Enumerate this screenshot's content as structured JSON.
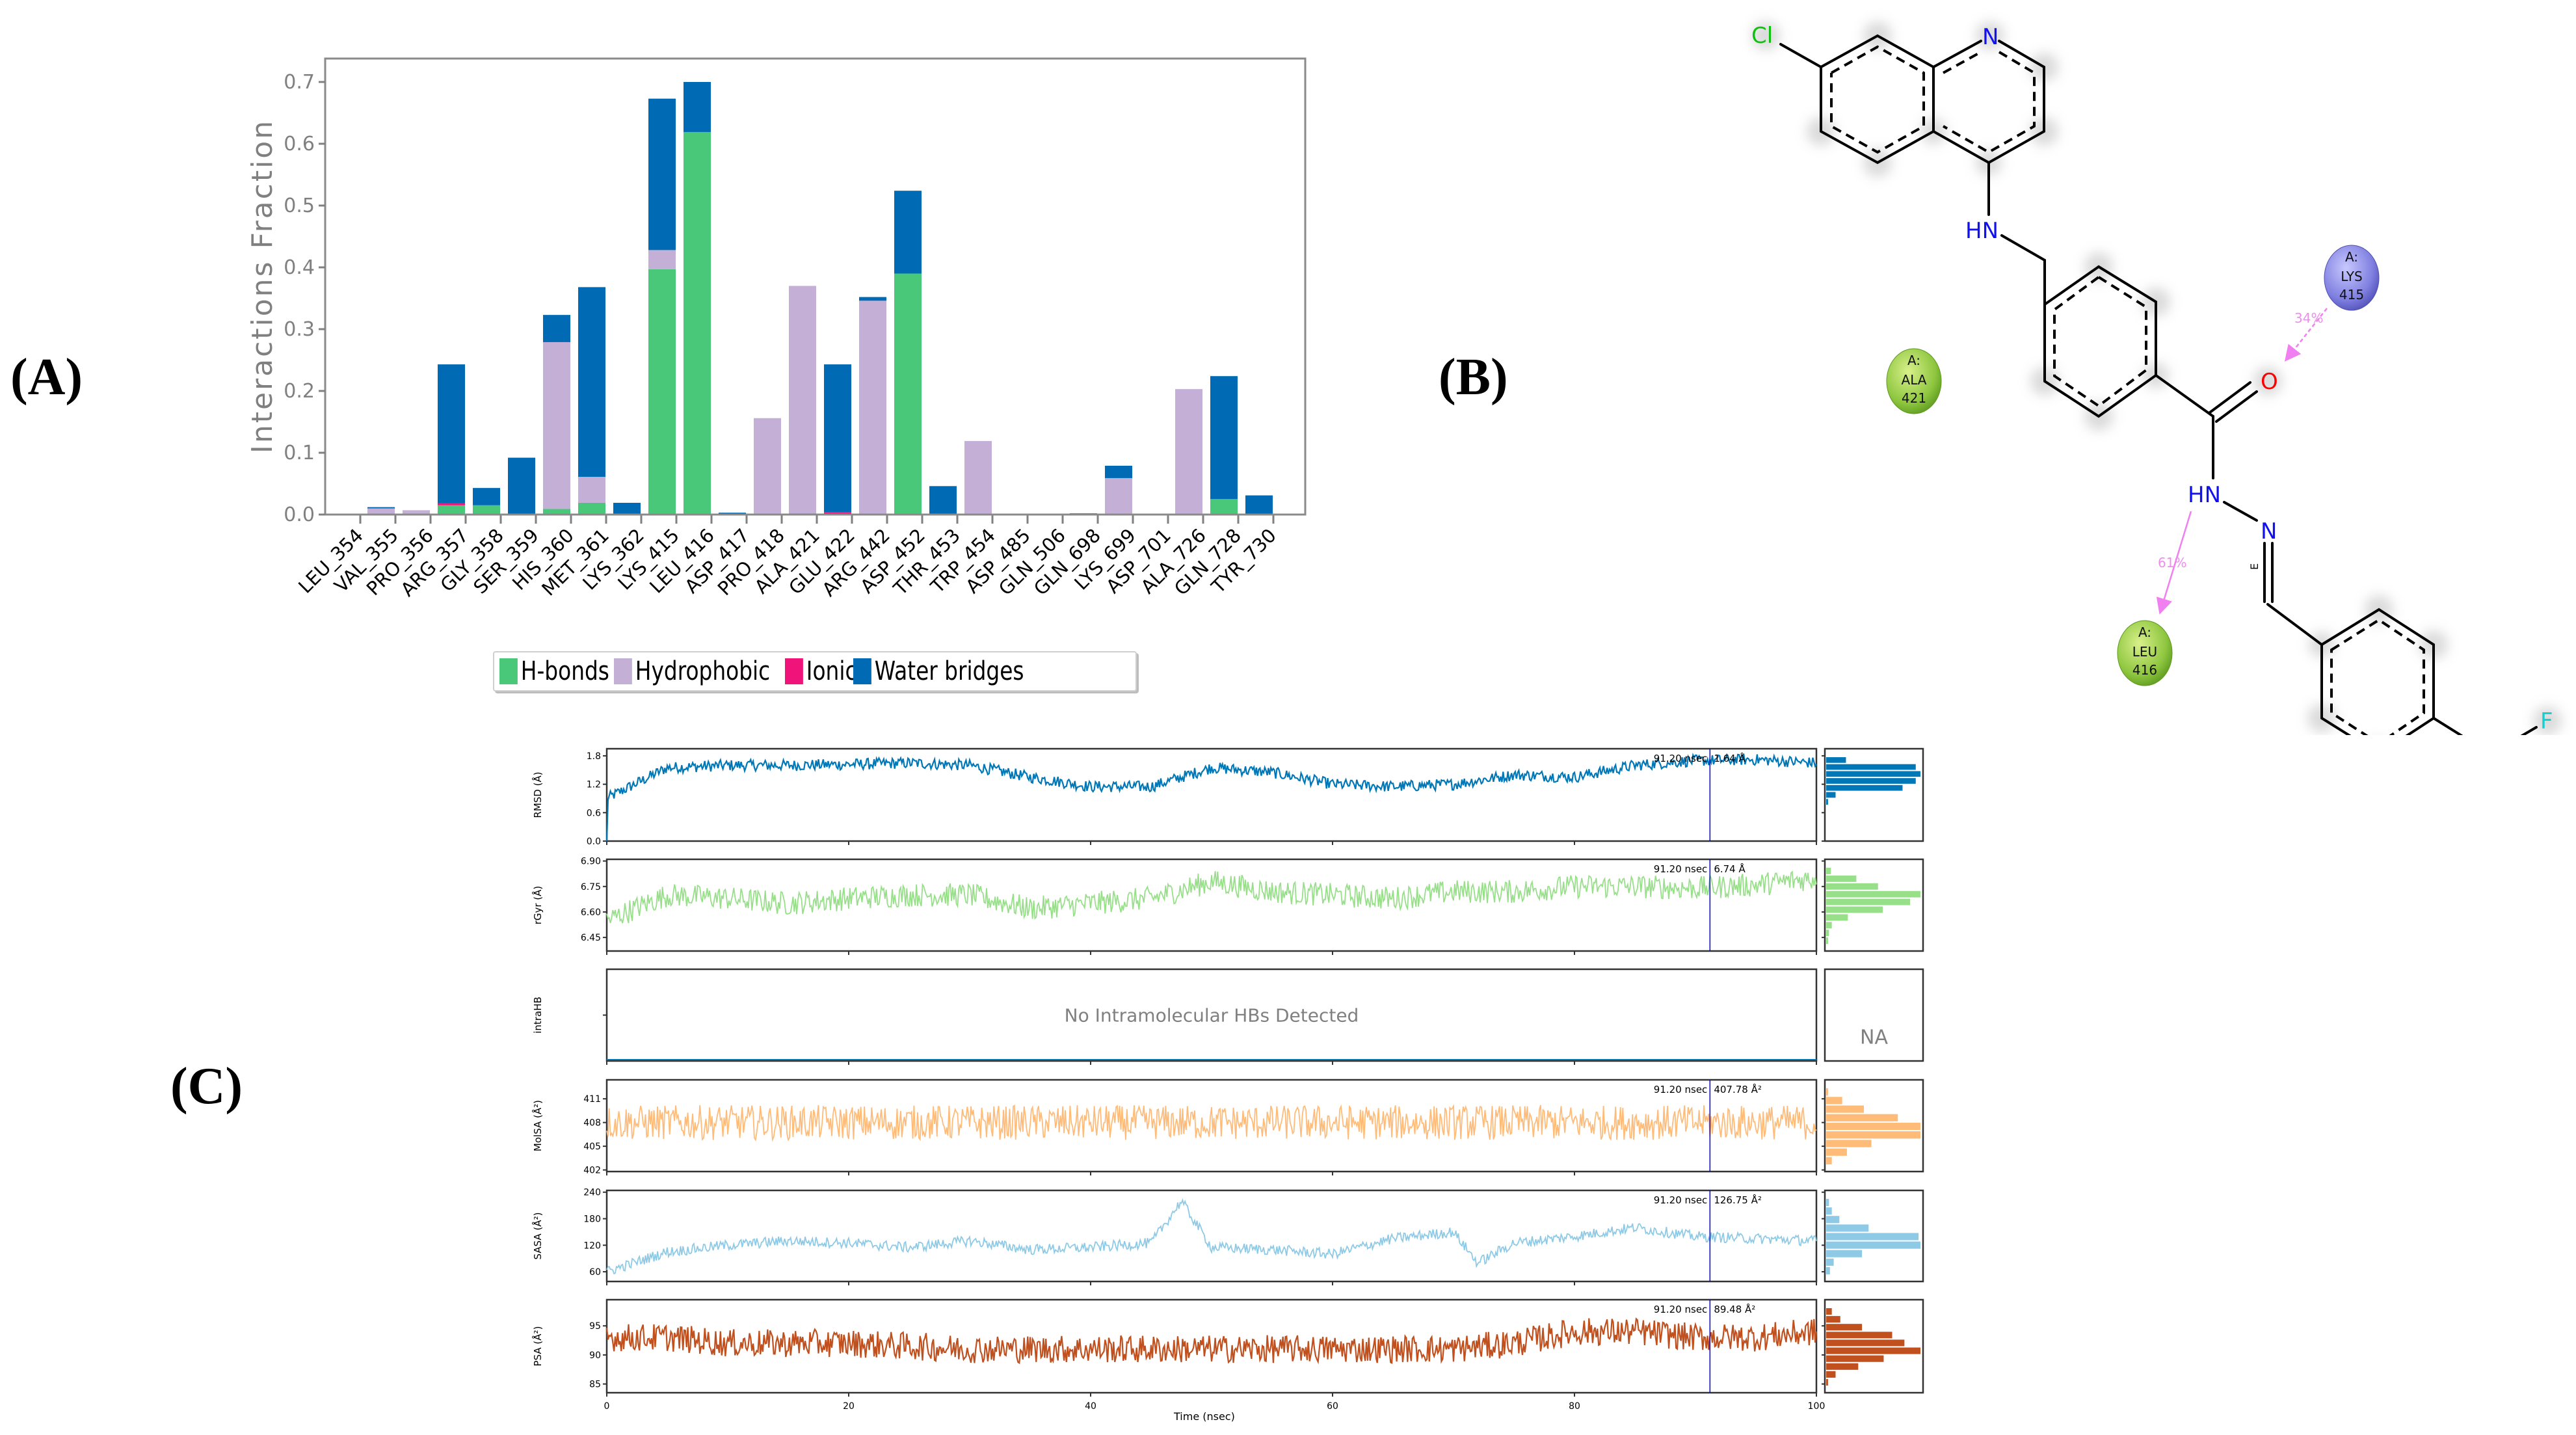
{
  "panel_labels": {
    "a": "(A)",
    "b": "(B)",
    "c": "(C)"
  },
  "colors": {
    "hbonds": "#48c878",
    "hydrophobic": "#c4afd6",
    "ionic": "#f0147a",
    "water_bridges": "#006ab4",
    "rmsd": "#0077b6",
    "rgyr": "#98df8a",
    "molsa": "#ffbb78",
    "sasa": "#8ecae6",
    "psa": "#c0501e",
    "marker_line": "#0000ff",
    "atom_n": "#1010f0",
    "atom_o": "#ff0000",
    "atom_cl": "#10c010",
    "atom_f": "#10d0d0",
    "res_hydrophobic": "#8ec63f",
    "res_positive": "#7f7fe0",
    "hbond_arrow": "#f080f0"
  },
  "chart_data": [
    {
      "id": "A",
      "type": "bar",
      "stacked": true,
      "title": "",
      "xlabel": "",
      "ylabel": "Interactions Fraction",
      "ylim": [
        0,
        0.72
      ],
      "yticks": [
        "0.0",
        "0.1",
        "0.2",
        "0.3",
        "0.4",
        "0.5",
        "0.6",
        "0.7"
      ],
      "legend_position": "bottom-center",
      "categories": [
        "LEU_354",
        "VAL_355",
        "PRO_356",
        "ARG_357",
        "GLY_358",
        "SER_359",
        "HIS_360",
        "MET_361",
        "LYS_362",
        "LYS_415",
        "LEU_416",
        "ASP_417",
        "PRO_418",
        "ALA_421",
        "GLU_422",
        "ARG_442",
        "ASP_452",
        "THR_453",
        "TRP_454",
        "ASP_485",
        "GLN_506",
        "GLN_698",
        "LYS_699",
        "ASP_701",
        "ALA_726",
        "GLN_728",
        "TYR_730"
      ],
      "series": [
        {
          "name": "H-bonds",
          "values": [
            0,
            0,
            0,
            0.015,
            0.015,
            0,
            0.009,
            0.019,
            0,
            0.397,
            0.619,
            0,
            0,
            0.002,
            0,
            0,
            0.39,
            0,
            0,
            0,
            0,
            0,
            0,
            0,
            0,
            0.025,
            0
          ]
        },
        {
          "name": "Hydrophobic",
          "values": [
            0,
            0.01,
            0.007,
            0,
            0,
            0,
            0.27,
            0.042,
            0,
            0.031,
            0,
            0,
            0.156,
            0.368,
            0,
            0.346,
            0,
            0,
            0.119,
            0,
            0,
            0,
            0.059,
            0,
            0.203,
            0,
            0
          ]
        },
        {
          "name": "Ionic",
          "values": [
            0,
            0,
            0,
            0.003,
            0,
            0,
            0,
            0,
            0,
            0,
            0,
            0,
            0,
            0,
            0.004,
            0,
            0,
            0,
            0,
            0,
            0,
            0,
            0,
            0,
            0,
            0,
            0
          ]
        },
        {
          "name": "Water bridges",
          "values": [
            0,
            0.002,
            0,
            0.225,
            0.028,
            0.092,
            0.044,
            0.307,
            0.019,
            0.245,
            0.081,
            0.003,
            0,
            0,
            0.239,
            0.006,
            0.134,
            0.046,
            0,
            0,
            0,
            0.002,
            0.02,
            0,
            0,
            0.199,
            0.031
          ]
        }
      ]
    },
    {
      "id": "C-RMSD",
      "type": "line",
      "ylabel": "RMSD (Å)",
      "xlabel": "Time (nsec)",
      "xlim": [
        0,
        100
      ],
      "ylim": [
        0,
        1.95
      ],
      "yticks": [
        "0.0",
        "0.6",
        "1.2",
        "1.8"
      ],
      "marker": {
        "time": "91.20 nsec",
        "value": "1.64 Å"
      },
      "x": [
        0,
        5,
        10,
        15,
        20,
        25,
        30,
        35,
        40,
        45,
        50,
        55,
        60,
        65,
        70,
        75,
        80,
        85,
        90,
        95,
        100
      ],
      "values": [
        0.9,
        1.55,
        1.6,
        1.6,
        1.62,
        1.65,
        1.6,
        1.35,
        1.15,
        1.15,
        1.55,
        1.45,
        1.2,
        1.15,
        1.2,
        1.4,
        1.35,
        1.6,
        1.7,
        1.72,
        1.65
      ],
      "histogram": [
        0.21,
        0.95,
        1.0,
        0.95,
        0.81,
        0.1,
        0.02
      ]
    },
    {
      "id": "C-rGyr",
      "type": "line",
      "ylabel": "rGyr (Å)",
      "xlim": [
        0,
        100
      ],
      "ylim": [
        6.37,
        6.91
      ],
      "yticks": [
        "6.45",
        "6.60",
        "6.75",
        "6.90"
      ],
      "marker": {
        "time": "91.20 nsec",
        "value": "6.74 Å"
      },
      "x": [
        0,
        5,
        10,
        15,
        20,
        25,
        30,
        35,
        40,
        45,
        50,
        55,
        60,
        65,
        70,
        75,
        80,
        85,
        90,
        95,
        100
      ],
      "values": [
        6.55,
        6.7,
        6.68,
        6.65,
        6.68,
        6.7,
        6.7,
        6.62,
        6.65,
        6.68,
        6.78,
        6.72,
        6.7,
        6.68,
        6.72,
        6.72,
        6.75,
        6.75,
        6.74,
        6.76,
        6.8
      ],
      "histogram": [
        0.05,
        0.32,
        0.55,
        1.0,
        0.89,
        0.6,
        0.23,
        0.06,
        0.03,
        0.02
      ]
    },
    {
      "id": "C-intraHB",
      "type": "line",
      "ylabel": "intraHB",
      "xlim": [
        0,
        100
      ],
      "annotation": "No Intramolecular HBs Detected",
      "histogram_label": "NA"
    },
    {
      "id": "C-MolSA",
      "type": "line",
      "ylabel": "MolSA (Å²)",
      "xlim": [
        0,
        100
      ],
      "ylim": [
        401.8,
        413.4
      ],
      "yticks": [
        "402",
        "405",
        "408",
        "411"
      ],
      "marker": {
        "time": "91.20 nsec",
        "value": "407.78 Å²"
      },
      "x": [
        0,
        10,
        20,
        30,
        40,
        50,
        60,
        70,
        80,
        90,
        100
      ],
      "values": [
        408,
        408,
        408,
        408,
        408,
        408,
        408,
        408,
        408,
        408,
        408
      ],
      "histogram": [
        0.02,
        0.17,
        0.4,
        0.76,
        1.0,
        1.0,
        0.48,
        0.22,
        0.06
      ]
    },
    {
      "id": "C-SASA",
      "type": "line",
      "ylabel": "SASA (Å²)",
      "xlim": [
        0,
        100
      ],
      "ylim": [
        38,
        244
      ],
      "yticks": [
        "60",
        "120",
        "180",
        "240"
      ],
      "marker": {
        "time": "91.20 nsec",
        "value": "126.75 Å²"
      },
      "x": [
        0,
        5,
        10,
        15,
        20,
        25,
        30,
        35,
        40,
        45,
        47.5,
        50,
        55,
        60,
        65,
        70,
        72,
        75,
        80,
        85,
        90,
        95,
        100
      ],
      "values": [
        60,
        105,
        120,
        130,
        125,
        115,
        130,
        110,
        115,
        125,
        220,
        115,
        110,
        100,
        135,
        150,
        80,
        125,
        140,
        160,
        140,
        135,
        130
      ],
      "histogram": [
        0.03,
        0.06,
        0.14,
        0.45,
        0.98,
        1.0,
        0.38,
        0.08,
        0.04
      ]
    },
    {
      "id": "C-PSA",
      "type": "line",
      "ylabel": "PSA (Å²)",
      "xlabel": "Time (nsec)",
      "xlim": [
        0,
        100
      ],
      "xticks": [
        "0",
        "20",
        "40",
        "60",
        "80",
        "100"
      ],
      "ylim": [
        83.5,
        99.5
      ],
      "yticks": [
        "85",
        "90",
        "95"
      ],
      "marker": {
        "time": "91.20 nsec",
        "value": "89.48 Å²"
      },
      "x": [
        0,
        5,
        10,
        20,
        30,
        40,
        50,
        60,
        70,
        75,
        80,
        85,
        90,
        95,
        100
      ],
      "values": [
        93,
        93,
        92,
        92,
        91,
        91,
        91,
        91,
        91,
        92,
        94,
        94,
        93,
        93,
        94
      ],
      "histogram": [
        0.06,
        0.15,
        0.38,
        0.7,
        0.83,
        1.0,
        0.61,
        0.34,
        0.1,
        0.02
      ]
    }
  ],
  "panel_a": {
    "legend": [
      {
        "label": "H-bonds",
        "color_key": "hbonds"
      },
      {
        "label": "Hydrophobic",
        "color_key": "hydrophobic"
      },
      {
        "label": "Ionic",
        "color_key": "ionic"
      },
      {
        "label": "Water bridges",
        "color_key": "water_bridges"
      }
    ]
  },
  "panel_b": {
    "atoms": {
      "cl": "Cl",
      "n1": "N",
      "nh1": "HN",
      "o": "O",
      "nh2": "HN",
      "n2": "N",
      "stereo": "E",
      "f1": "F",
      "f2": "F",
      "f3": "F"
    },
    "residues": [
      {
        "chain": "A:",
        "name": "LYS",
        "num": "415",
        "type": "positive"
      },
      {
        "chain": "A:",
        "name": "ALA",
        "num": "421",
        "type": "hydrophobic"
      },
      {
        "chain": "A:",
        "name": "LEU",
        "num": "416",
        "type": "hydrophobic"
      }
    ],
    "interactions": [
      {
        "from": "LYS 415",
        "to": "O",
        "percent": "34%"
      },
      {
        "from": "HN",
        "to": "LEU 416",
        "percent": "61%"
      }
    ]
  },
  "panel_c": {
    "xlabel": "Time (nsec)",
    "marker_time_ns": 91.2
  }
}
